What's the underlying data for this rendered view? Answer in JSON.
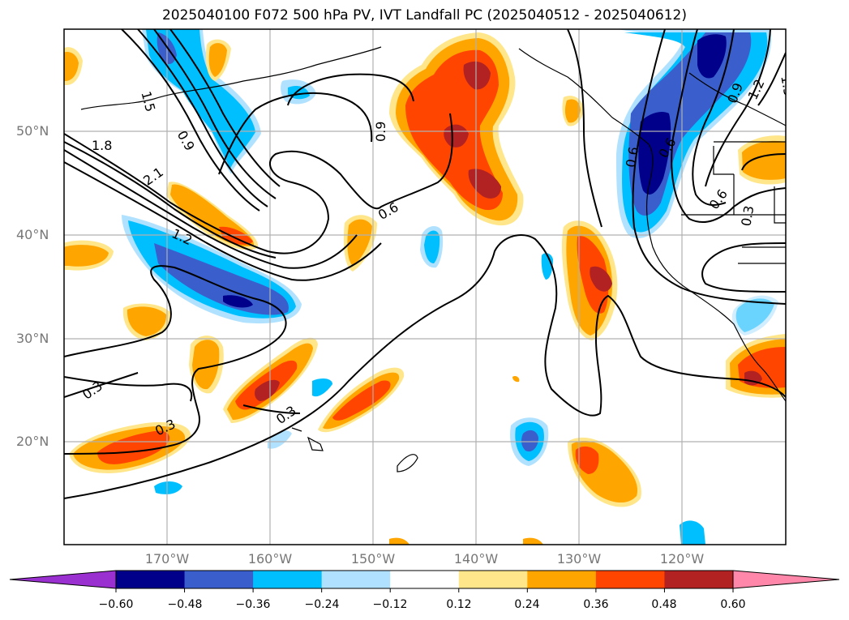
{
  "title": "2025040100 F072 500 hPa PV, IVT Landfall PC (2025040512 - 2025040612)",
  "lat_labels": [
    "50°N",
    "40°N",
    "30°N",
    "20°N"
  ],
  "lon_labels": [
    "170°W",
    "160°W",
    "150°W",
    "140°W",
    "130°W",
    "120°W"
  ],
  "contour_labels": [
    "1.5",
    "1.8",
    "2.1",
    "0.9",
    "1.2",
    "0.6",
    "0.9",
    "0.6",
    "0.3",
    "0.3",
    "0.3",
    "0.6",
    "0.9",
    "1.2",
    "1.5",
    "0.6",
    "0.3"
  ],
  "colorbar": {
    "ticks": [
      "−0.60",
      "−0.48",
      "−0.36",
      "−0.24",
      "−0.12",
      "0.12",
      "0.24",
      "0.36",
      "0.48",
      "0.60"
    ],
    "colors": [
      "#9b30d0",
      "#00008b",
      "#3a5fcd",
      "#00bfff",
      "#b0e2ff",
      "#ffffff",
      "#ffe68a",
      "#ffa500",
      "#ff4500",
      "#b22222",
      "#ff88aa"
    ]
  },
  "colors": {
    "neg_strong": "#00008b",
    "neg_mid": "#3a5fcd",
    "neg_light": "#00bfff",
    "neg_faint": "#b0e2ff",
    "pos_faint": "#ffe68a",
    "pos_light": "#ffa500",
    "pos_mid": "#ff4500",
    "pos_strong": "#b22222"
  }
}
